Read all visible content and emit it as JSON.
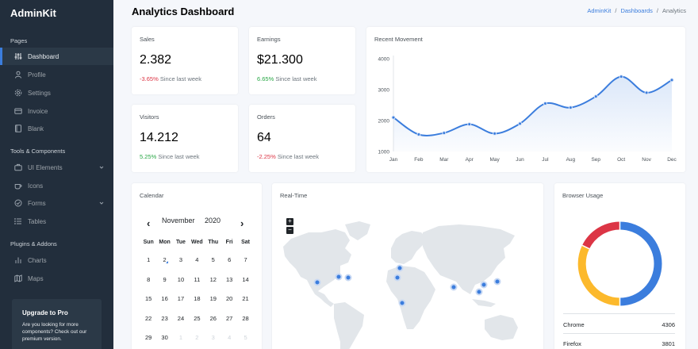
{
  "sidebar": {
    "brand": "AdminKit",
    "sections": {
      "pages": "Pages",
      "tools": "Tools & Components",
      "plugins": "Plugins & Addons"
    },
    "items": [
      {
        "label": "Dashboard",
        "icon": "sliders-icon",
        "active": true
      },
      {
        "label": "Profile",
        "icon": "user-icon"
      },
      {
        "label": "Settings",
        "icon": "settings-icon"
      },
      {
        "label": "Invoice",
        "icon": "credit-card-icon"
      },
      {
        "label": "Blank",
        "icon": "book-icon"
      },
      {
        "label": "UI Elements",
        "icon": "briefcase-icon",
        "expandable": true
      },
      {
        "label": "Icons",
        "icon": "coffee-icon"
      },
      {
        "label": "Forms",
        "icon": "check-circle-icon",
        "expandable": true
      },
      {
        "label": "Tables",
        "icon": "list-icon"
      },
      {
        "label": "Charts",
        "icon": "bar-chart-icon"
      },
      {
        "label": "Maps",
        "icon": "map-icon"
      }
    ],
    "upgrade": {
      "title": "Upgrade to Pro",
      "text": "Are you looking for more components? Check out our premium version."
    }
  },
  "header": {
    "title_bold": "Analytics",
    "title_rest": "Dashboard",
    "breadcrumb": [
      "AdminKit",
      "/",
      "Dashboards",
      "/",
      "Analytics"
    ]
  },
  "stats": {
    "sales": {
      "title": "Sales",
      "value": "2.382",
      "change": "-3.65%",
      "note": "Since last week"
    },
    "earnings": {
      "title": "Earnings",
      "value": "$21.300",
      "change": "6.65%",
      "note": "Since last week"
    },
    "visitors": {
      "title": "Visitors",
      "value": "14.212",
      "change": "5.25%",
      "note": "Since last week"
    },
    "orders": {
      "title": "Orders",
      "value": "64",
      "change": "-2.25%",
      "note": "Since last week"
    }
  },
  "movement": {
    "title": "Recent Movement"
  },
  "calendar": {
    "title": "Calendar",
    "month": "November",
    "year": "2020",
    "prev": "‹",
    "next": "›",
    "dow": [
      "Sun",
      "Mon",
      "Tue",
      "Wed",
      "Thu",
      "Fri",
      "Sat"
    ],
    "weeks": [
      [
        "1",
        "2",
        "3",
        "4",
        "5",
        "6",
        "7"
      ],
      [
        "8",
        "9",
        "10",
        "11",
        "12",
        "13",
        "14"
      ],
      [
        "15",
        "16",
        "17",
        "18",
        "19",
        "20",
        "21"
      ],
      [
        "22",
        "23",
        "24",
        "25",
        "26",
        "27",
        "28"
      ],
      [
        "29",
        "30",
        "1",
        "2",
        "3",
        "4",
        "5"
      ]
    ]
  },
  "realtime": {
    "title": "Real-Time",
    "zoom_in": "+",
    "zoom_out": "−"
  },
  "browser": {
    "title": "Browser Usage",
    "rows": [
      {
        "name": "Chrome",
        "value": "4306"
      },
      {
        "name": "Firefox",
        "value": "3801"
      }
    ]
  },
  "colors": {
    "primary": "#3b7ddd",
    "warning": "#fcb92c",
    "danger": "#dc3545",
    "success": "#28a745",
    "sidebar": "#222e3c"
  },
  "chart_data": {
    "type": "area",
    "title": "Recent Movement",
    "categories": [
      "Jan",
      "Feb",
      "Mar",
      "Apr",
      "May",
      "Jun",
      "Jul",
      "Aug",
      "Sep",
      "Oct",
      "Nov",
      "Dec"
    ],
    "series": [
      {
        "values": [
          2100,
          1550,
          1600,
          1880,
          1580,
          1900,
          2550,
          2420,
          2780,
          3420,
          2900,
          3310
        ]
      }
    ],
    "yticks": [
      "1000",
      "2000",
      "3000",
      "4000"
    ],
    "ylim": [
      1000,
      4000
    ],
    "grid": false
  }
}
